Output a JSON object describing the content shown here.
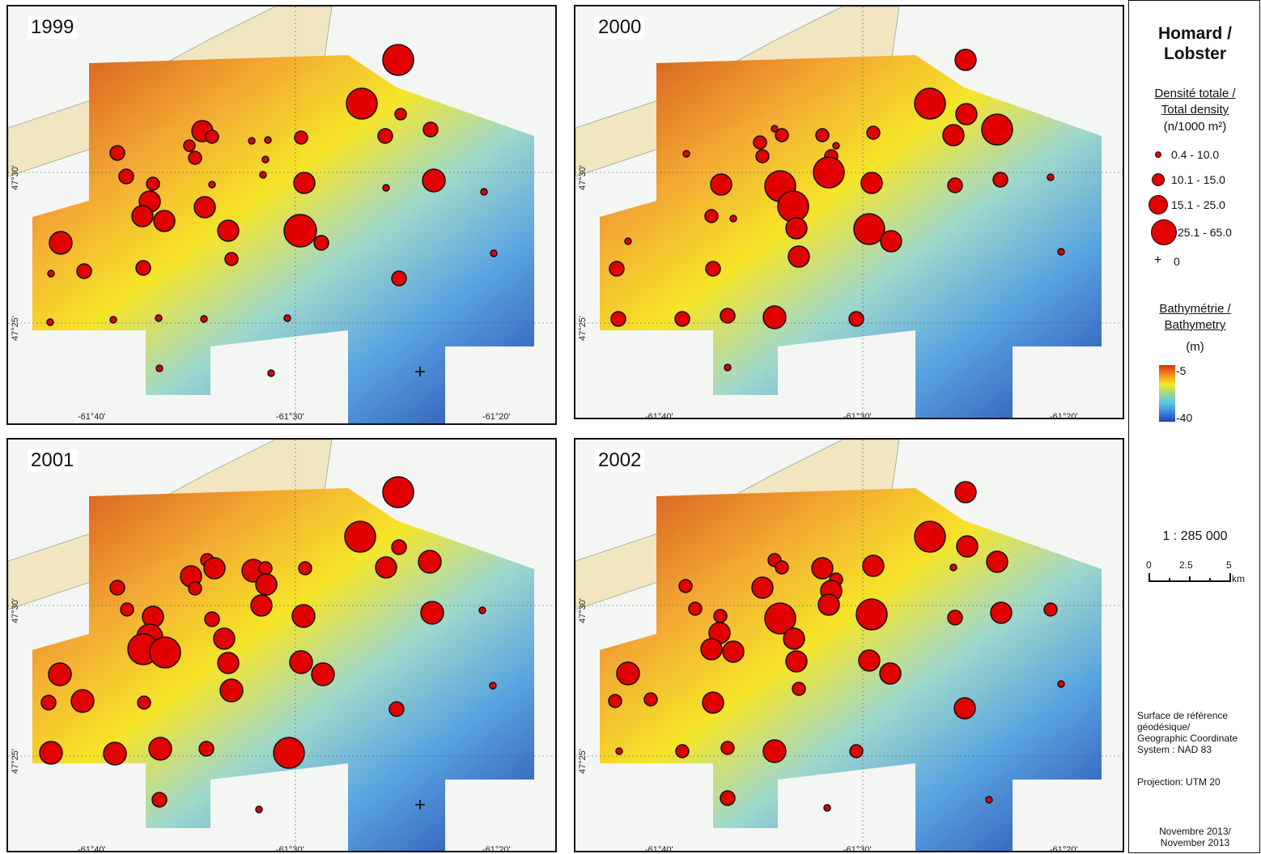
{
  "panels": [
    {
      "year": "1999",
      "lat_labels": [
        "47°30'",
        "47°25'"
      ],
      "lon_labels": [
        "-61°40'",
        "-61°30'",
        "-61°20'"
      ],
      "circles": [
        [
          490,
          72,
          19
        ],
        [
          445,
          126,
          19
        ],
        [
          493,
          139,
          7
        ],
        [
          530,
          158,
          9
        ],
        [
          248,
          160,
          13
        ],
        [
          260,
          167,
          8
        ],
        [
          232,
          178,
          7
        ],
        [
          239,
          193,
          8
        ],
        [
          309,
          172,
          4
        ],
        [
          329,
          171,
          4
        ],
        [
          370,
          168,
          8
        ],
        [
          474,
          166,
          9
        ],
        [
          143,
          187,
          9
        ],
        [
          326,
          195,
          4
        ],
        [
          323,
          214,
          4
        ],
        [
          154,
          216,
          9
        ],
        [
          187,
          225,
          8
        ],
        [
          260,
          226,
          4
        ],
        [
          374,
          224,
          13
        ],
        [
          534,
          221,
          14
        ],
        [
          475,
          230,
          4
        ],
        [
          596,
          235,
          4
        ],
        [
          183,
          247,
          13
        ],
        [
          251,
          254,
          13
        ],
        [
          174,
          265,
          13
        ],
        [
          201,
          271,
          13
        ],
        [
          369,
          283,
          20
        ],
        [
          280,
          283,
          13
        ],
        [
          395,
          298,
          9
        ],
        [
          73,
          298,
          14
        ],
        [
          284,
          318,
          8
        ],
        [
          608,
          311,
          4
        ],
        [
          102,
          333,
          9
        ],
        [
          175,
          329,
          9
        ],
        [
          61,
          336,
          4
        ],
        [
          491,
          342,
          9
        ],
        [
          60,
          396,
          4
        ],
        [
          138,
          393,
          4
        ],
        [
          194,
          391,
          4
        ],
        [
          250,
          392,
          4
        ],
        [
          353,
          391,
          4
        ],
        [
          195,
          453,
          4
        ],
        [
          333,
          459,
          4
        ]
      ],
      "plus": true
    },
    {
      "year": "2000",
      "lat_labels": [
        "47°30'",
        "47°25'"
      ],
      "lon_labels": [
        "-61°40'",
        "-61°30'",
        "-61°20'"
      ],
      "circles": [
        [
          1191,
          72,
          13
        ],
        [
          1147,
          126,
          19
        ],
        [
          1192,
          139,
          13
        ],
        [
          1230,
          158,
          19
        ],
        [
          955,
          157,
          4
        ],
        [
          964,
          165,
          8
        ],
        [
          1014,
          165,
          8
        ],
        [
          1031,
          178,
          4
        ],
        [
          1077,
          162,
          8
        ],
        [
          1176,
          165,
          13
        ],
        [
          937,
          174,
          8
        ],
        [
          940,
          191,
          8
        ],
        [
          1025,
          191,
          8
        ],
        [
          846,
          188,
          4
        ],
        [
          1022,
          211,
          19
        ],
        [
          1296,
          217,
          4
        ],
        [
          889,
          226,
          13
        ],
        [
          1075,
          224,
          13
        ],
        [
          962,
          228,
          19
        ],
        [
          1234,
          220,
          9
        ],
        [
          1178,
          227,
          9
        ],
        [
          978,
          253,
          19
        ],
        [
          877,
          265,
          8
        ],
        [
          904,
          268,
          4
        ],
        [
          982,
          280,
          13
        ],
        [
          1072,
          281,
          19
        ],
        [
          1099,
          296,
          13
        ],
        [
          774,
          296,
          4
        ],
        [
          985,
          315,
          13
        ],
        [
          1309,
          309,
          4
        ],
        [
          760,
          330,
          9
        ],
        [
          879,
          330,
          9
        ],
        [
          762,
          392,
          9
        ],
        [
          841,
          392,
          9
        ],
        [
          897,
          388,
          9
        ],
        [
          955,
          390,
          14
        ],
        [
          1056,
          392,
          9
        ],
        [
          897,
          452,
          4
        ]
      ],
      "plus": true
    },
    {
      "year": "2001",
      "lat_labels": [
        "47°30'",
        "47°25'"
      ],
      "lon_labels": [
        "-61°40'",
        "-61°30'",
        "-61°20'"
      ],
      "circles": [
        [
          490,
          606,
          19
        ],
        [
          443,
          661,
          19
        ],
        [
          491,
          674,
          9
        ],
        [
          529,
          692,
          14
        ],
        [
          254,
          690,
          8
        ],
        [
          263,
          700,
          13
        ],
        [
          234,
          710,
          13
        ],
        [
          239,
          725,
          8
        ],
        [
          311,
          703,
          14
        ],
        [
          326,
          700,
          8
        ],
        [
          375,
          700,
          8
        ],
        [
          475,
          699,
          13
        ],
        [
          143,
          724,
          9
        ],
        [
          327,
          720,
          13
        ],
        [
          321,
          746,
          13
        ],
        [
          155,
          751,
          8
        ],
        [
          187,
          760,
          13
        ],
        [
          260,
          763,
          9
        ],
        [
          373,
          759,
          14
        ],
        [
          532,
          755,
          14
        ],
        [
          594,
          752,
          4
        ],
        [
          183,
          785,
          16
        ],
        [
          275,
          787,
          13
        ],
        [
          175,
          800,
          19
        ],
        [
          202,
          804,
          19
        ],
        [
          280,
          817,
          13
        ],
        [
          370,
          816,
          14
        ],
        [
          397,
          831,
          14
        ],
        [
          72,
          831,
          14
        ],
        [
          284,
          851,
          14
        ],
        [
          607,
          845,
          4
        ],
        [
          100,
          864,
          14
        ],
        [
          176,
          866,
          8
        ],
        [
          58,
          866,
          9
        ],
        [
          488,
          874,
          9
        ],
        [
          61,
          928,
          14
        ],
        [
          140,
          929,
          14
        ],
        [
          196,
          923,
          14
        ],
        [
          253,
          923,
          9
        ],
        [
          355,
          928,
          19
        ],
        [
          195,
          986,
          9
        ],
        [
          318,
          998,
          4
        ]
      ],
      "plus": true
    },
    {
      "year": "2002",
      "lat_labels": [
        "47°30'",
        "47°25'"
      ],
      "lon_labels": [
        "-61°40'",
        "-61°30'",
        "-61°20'"
      ],
      "circles": [
        [
          1191,
          606,
          13
        ],
        [
          1147,
          661,
          19
        ],
        [
          1193,
          673,
          13
        ],
        [
          1230,
          692,
          13
        ],
        [
          955,
          690,
          8
        ],
        [
          964,
          699,
          8
        ],
        [
          1014,
          700,
          13
        ],
        [
          1031,
          714,
          8
        ],
        [
          1077,
          697,
          13
        ],
        [
          1176,
          699,
          4
        ],
        [
          940,
          724,
          13
        ],
        [
          1025,
          728,
          13
        ],
        [
          845,
          722,
          8
        ],
        [
          857,
          750,
          8
        ],
        [
          1022,
          745,
          13
        ],
        [
          1296,
          751,
          8
        ],
        [
          888,
          759,
          8
        ],
        [
          1075,
          757,
          19
        ],
        [
          962,
          762,
          19
        ],
        [
          1235,
          755,
          13
        ],
        [
          1178,
          761,
          9
        ],
        [
          979,
          787,
          13
        ],
        [
          887,
          780,
          13
        ],
        [
          877,
          800,
          13
        ],
        [
          904,
          803,
          13
        ],
        [
          982,
          815,
          13
        ],
        [
          1072,
          814,
          13
        ],
        [
          1098,
          830,
          13
        ],
        [
          774,
          830,
          14
        ],
        [
          985,
          849,
          8
        ],
        [
          1309,
          843,
          4
        ],
        [
          758,
          864,
          8
        ],
        [
          802,
          862,
          8
        ],
        [
          879,
          866,
          13
        ],
        [
          1190,
          873,
          13
        ],
        [
          763,
          926,
          4
        ],
        [
          841,
          926,
          8
        ],
        [
          897,
          922,
          8
        ],
        [
          955,
          926,
          14
        ],
        [
          1056,
          926,
          8
        ],
        [
          897,
          984,
          9
        ],
        [
          1220,
          986,
          4
        ],
        [
          1020,
          996,
          4
        ]
      ],
      "plus": true
    }
  ],
  "legend": {
    "title_line1": "Homard /",
    "title_line2": "Lobster",
    "density_head1": "Densité totale /",
    "density_head2": "Total density",
    "density_unit": "(n/1000 m²)",
    "classes": [
      {
        "label": "0.4 - 10.0",
        "r": 4
      },
      {
        "label": "10.1 - 15.0",
        "r": 8
      },
      {
        "label": "15.1 - 25.0",
        "r": 12
      },
      {
        "label": "25.1 - 65.0",
        "r": 16
      }
    ],
    "zero_symbol": "+",
    "zero_label": "0",
    "bathy_head1": "Bathymétrie /",
    "bathy_head2": "Bathymetry",
    "bathy_unit": "(m)",
    "bathy_top": "-5",
    "bathy_bottom": "-40",
    "scale_ratio": "1 : 285 000",
    "scale_ticks": [
      "0",
      "2.5",
      "5"
    ],
    "scale_unit": "km",
    "note1_l1": "Surface de référence",
    "note1_l2": " géodésique/",
    "note1_l3": "Geographic Coordinate",
    "note1_l4": "System : NAD 83",
    "note2": "Projection: UTM 20",
    "date_l1": "Novembre 2013/",
    "date_l2": "November 2013"
  },
  "colors": {
    "circle": "#e10000",
    "land": "#f1e6bf",
    "water": "#f4f6f4"
  }
}
